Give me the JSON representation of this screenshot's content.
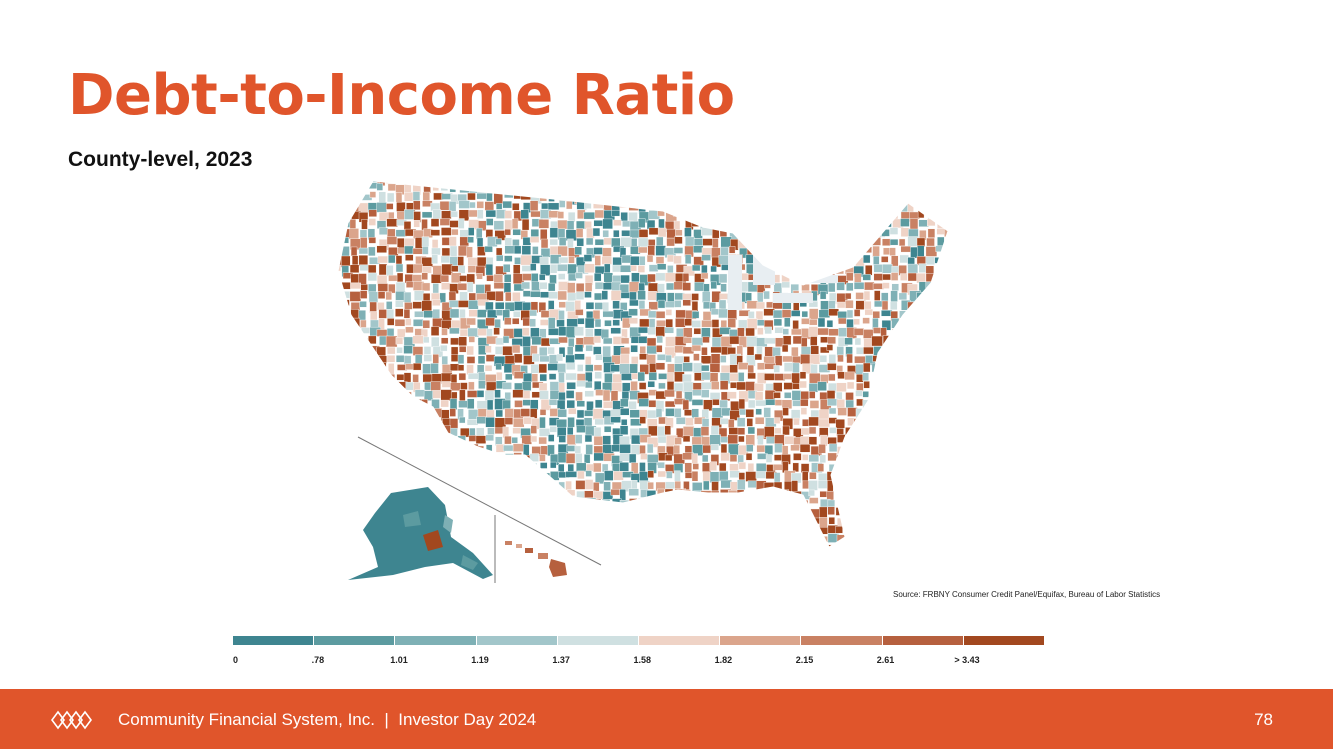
{
  "slide": {
    "title": "Debt-to-Income Ratio",
    "subtitle": "County-level, 2023",
    "source": "Source: FRBNY Consumer Credit Panel/Equifax, Bureau of Labor Statistics",
    "footer_text": "Community Financial System, Inc.  |  Investor Day 2024",
    "page_number": "78"
  },
  "legend": {
    "colors": [
      "#3e8590",
      "#5c9ba0",
      "#7eb0b5",
      "#a2c6ca",
      "#cfe0e1",
      "#efd3c6",
      "#dba58c",
      "#c98163",
      "#b6603e",
      "#a2481f"
    ],
    "labels": [
      "0",
      ".78",
      "1.01",
      "1.19",
      "1.37",
      "1.58",
      "1.82",
      "2.15",
      "2.61",
      "> 3.43"
    ]
  },
  "colors": {
    "accent": "#e0552b",
    "map_low": "#3e8590",
    "map_high": "#a2481f"
  }
}
